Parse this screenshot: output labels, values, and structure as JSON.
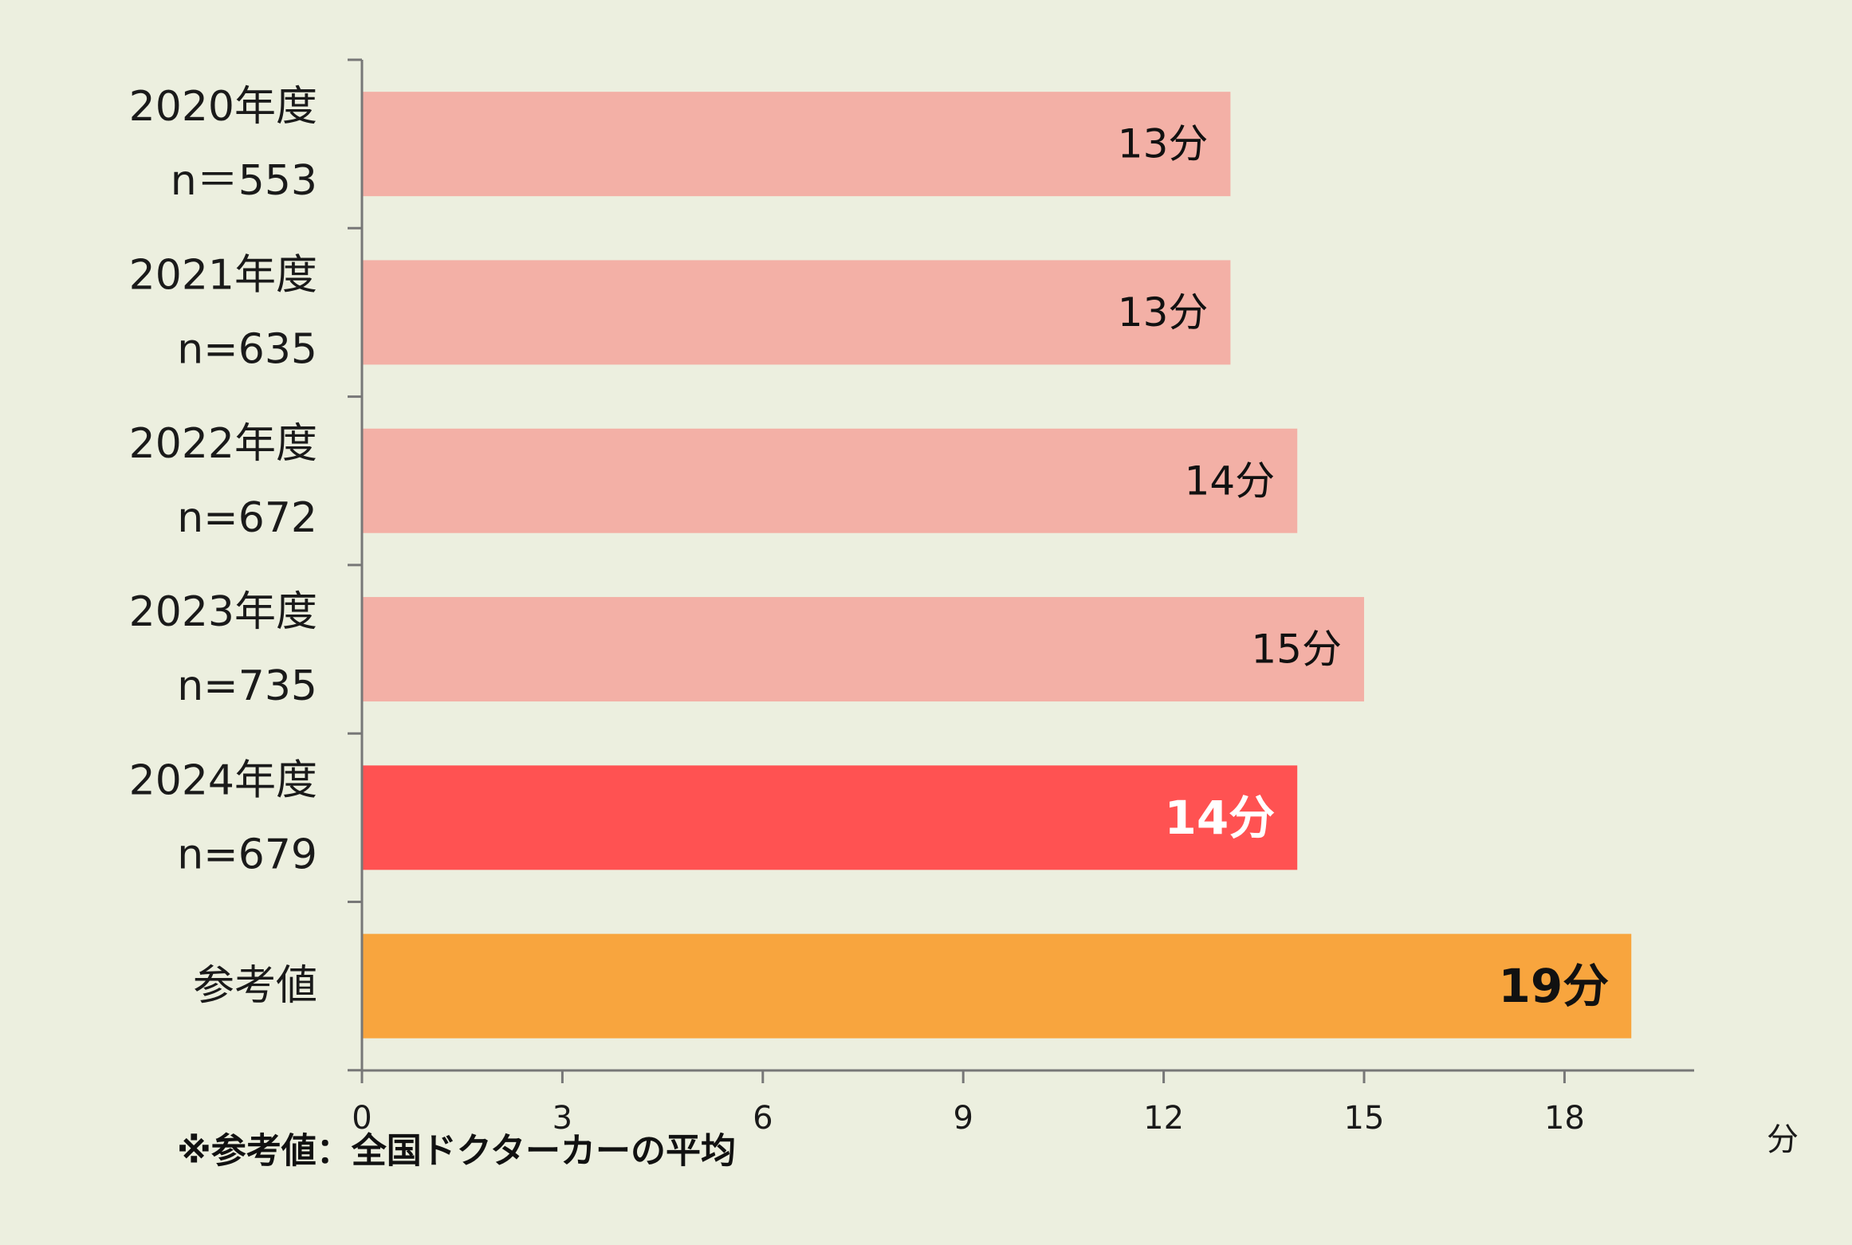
{
  "chart_data": {
    "type": "bar",
    "orientation": "horizontal",
    "categories": [
      [
        "2020年度",
        "n＝553"
      ],
      [
        "2021年度",
        "n=635"
      ],
      [
        "2022年度",
        "n=672"
      ],
      [
        "2023年度",
        "n=735"
      ],
      [
        "2024年度",
        "n=679"
      ],
      [
        "参考値"
      ]
    ],
    "values": [
      13,
      13,
      14,
      15,
      14,
      19
    ],
    "value_labels": [
      "13分",
      "13分",
      "14分",
      "15分",
      "14分",
      "19分"
    ],
    "bar_colors": [
      "#F3B0A6",
      "#F3B0A6",
      "#F3B0A6",
      "#F3B0A6",
      "#FF5252",
      "#F8A53E"
    ],
    "label_colors": [
      "#111111",
      "#111111",
      "#111111",
      "#111111",
      "#FFFFFF",
      "#111111"
    ],
    "label_bold": [
      false,
      false,
      false,
      false,
      true,
      true
    ],
    "xlim": [
      0,
      20
    ],
    "xticks": [
      0,
      3,
      6,
      9,
      12,
      15,
      18
    ],
    "xtick_labels": [
      "0",
      "3",
      "6",
      "9",
      "12",
      "15",
      "18"
    ],
    "xlabel": "分",
    "ylabel": "",
    "title": "",
    "grid": false,
    "legend": "none",
    "footnote": "※参考値：全国ドクターカーの平均",
    "plot_background": "#ECEFDF",
    "axis_color": "#777777"
  }
}
